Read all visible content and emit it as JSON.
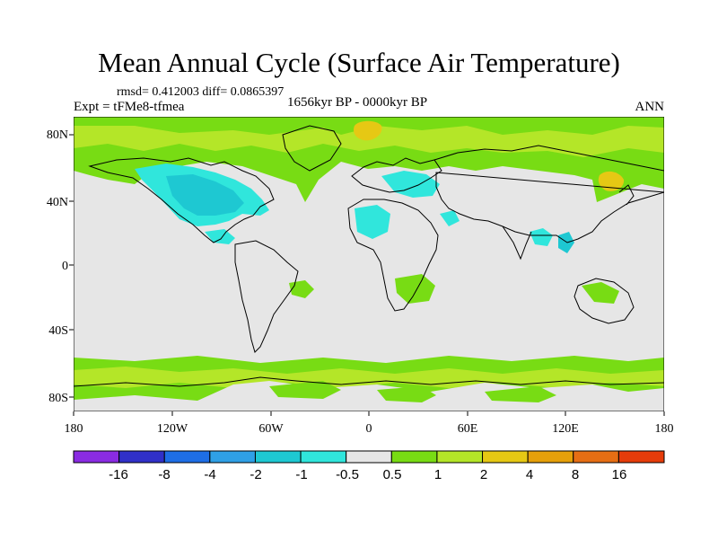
{
  "title": "Mean Annual Cycle (Surface Air Temperature)",
  "stats": "rmsd= 0.412003 diff= 0.0865397",
  "experiment": "Expt = tFMe8-tfmea",
  "period": "1656kyr BP - 0000kyr BP",
  "season": "ANN",
  "axes": {
    "x_ticks": [
      "180",
      "120W",
      "60W",
      "0",
      "60E",
      "120E",
      "180"
    ],
    "y_ticks": [
      "80N",
      "40N",
      "0",
      "40S",
      "80S"
    ]
  },
  "colorbar": {
    "colors": [
      "#8a2be2",
      "#3030c8",
      "#1e6ee6",
      "#2fa0e6",
      "#1ec8d2",
      "#30e6dc",
      "#e6e6e6",
      "#78dc14",
      "#b4e628",
      "#e6c814",
      "#e6a00a",
      "#e66e14",
      "#e63c0a"
    ],
    "labels": [
      "-16",
      "-8",
      "-4",
      "-2",
      "-1",
      "-0.5",
      "0.5",
      "1",
      "2",
      "4",
      "8",
      "16"
    ]
  },
  "colors": {
    "neutral": "#e6e6e6",
    "green": "#78dc14",
    "yellow_green": "#b4e628",
    "light_cyan": "#30e6dc",
    "cyan": "#1ec8d2",
    "orange": "#e6c814",
    "coast": "#000000"
  }
}
